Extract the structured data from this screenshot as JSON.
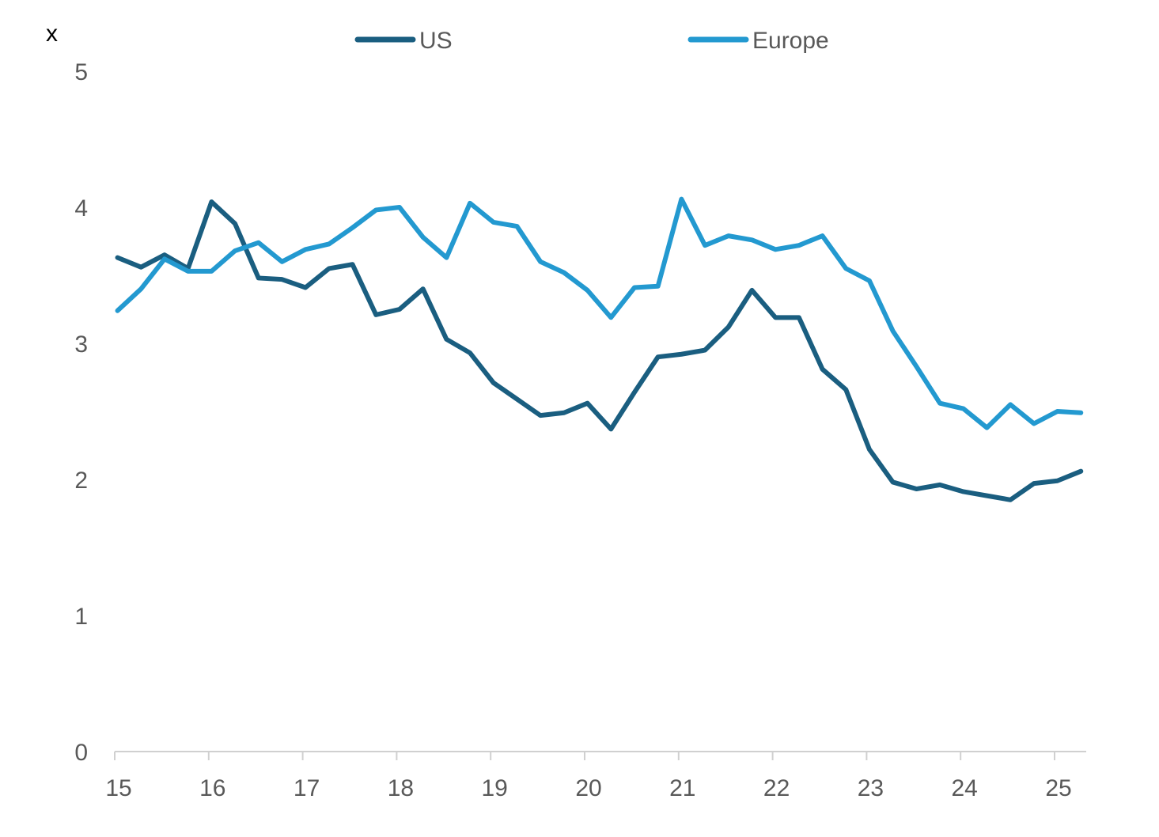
{
  "chart_data": {
    "type": "line",
    "title": "",
    "ylabel": "x",
    "xlabel": "",
    "ylim": [
      0,
      5
    ],
    "xlim": [
      15,
      25.3
    ],
    "yticks": [
      "0",
      "1",
      "2",
      "3",
      "4",
      "5"
    ],
    "xticks": [
      "15",
      "16",
      "17",
      "18",
      "19",
      "20",
      "21",
      "22",
      "23",
      "24",
      "25"
    ],
    "legend_position": "top-center",
    "grid": false,
    "x": [
      15.0,
      15.25,
      15.5,
      15.75,
      16.0,
      16.25,
      16.5,
      16.75,
      17.0,
      17.25,
      17.5,
      17.75,
      18.0,
      18.25,
      18.5,
      18.75,
      19.0,
      19.25,
      19.5,
      19.75,
      20.0,
      20.25,
      20.5,
      20.75,
      21.0,
      21.25,
      21.5,
      21.75,
      22.0,
      22.25,
      22.5,
      22.75,
      23.0,
      23.25,
      23.5,
      23.75,
      24.0,
      24.25,
      24.5,
      24.75,
      25.0,
      25.25
    ],
    "series": [
      {
        "name": "US",
        "color": "#1a5e80",
        "values": [
          3.63,
          3.56,
          3.65,
          3.55,
          4.04,
          3.88,
          3.48,
          3.47,
          3.41,
          3.55,
          3.58,
          3.21,
          3.25,
          3.4,
          3.03,
          2.93,
          2.71,
          2.59,
          2.47,
          2.49,
          2.56,
          2.37,
          2.64,
          2.9,
          2.92,
          2.95,
          3.12,
          3.39,
          3.19,
          3.19,
          2.81,
          2.66,
          2.22,
          1.98,
          1.93,
          1.96,
          1.91,
          1.88,
          1.85,
          1.97,
          1.99,
          2.06
        ]
      },
      {
        "name": "Europe",
        "color": "#2399d0",
        "values": [
          3.24,
          3.4,
          3.62,
          3.53,
          3.53,
          3.68,
          3.74,
          3.6,
          3.69,
          3.73,
          3.85,
          3.98,
          4.0,
          3.78,
          3.63,
          4.03,
          3.89,
          3.86,
          3.6,
          3.52,
          3.39,
          3.19,
          3.41,
          3.42,
          4.06,
          3.72,
          3.79,
          3.76,
          3.69,
          3.72,
          3.79,
          3.55,
          3.46,
          3.09,
          2.83,
          2.56,
          2.52,
          2.38,
          2.55,
          2.41,
          2.5,
          2.49
        ]
      }
    ]
  }
}
